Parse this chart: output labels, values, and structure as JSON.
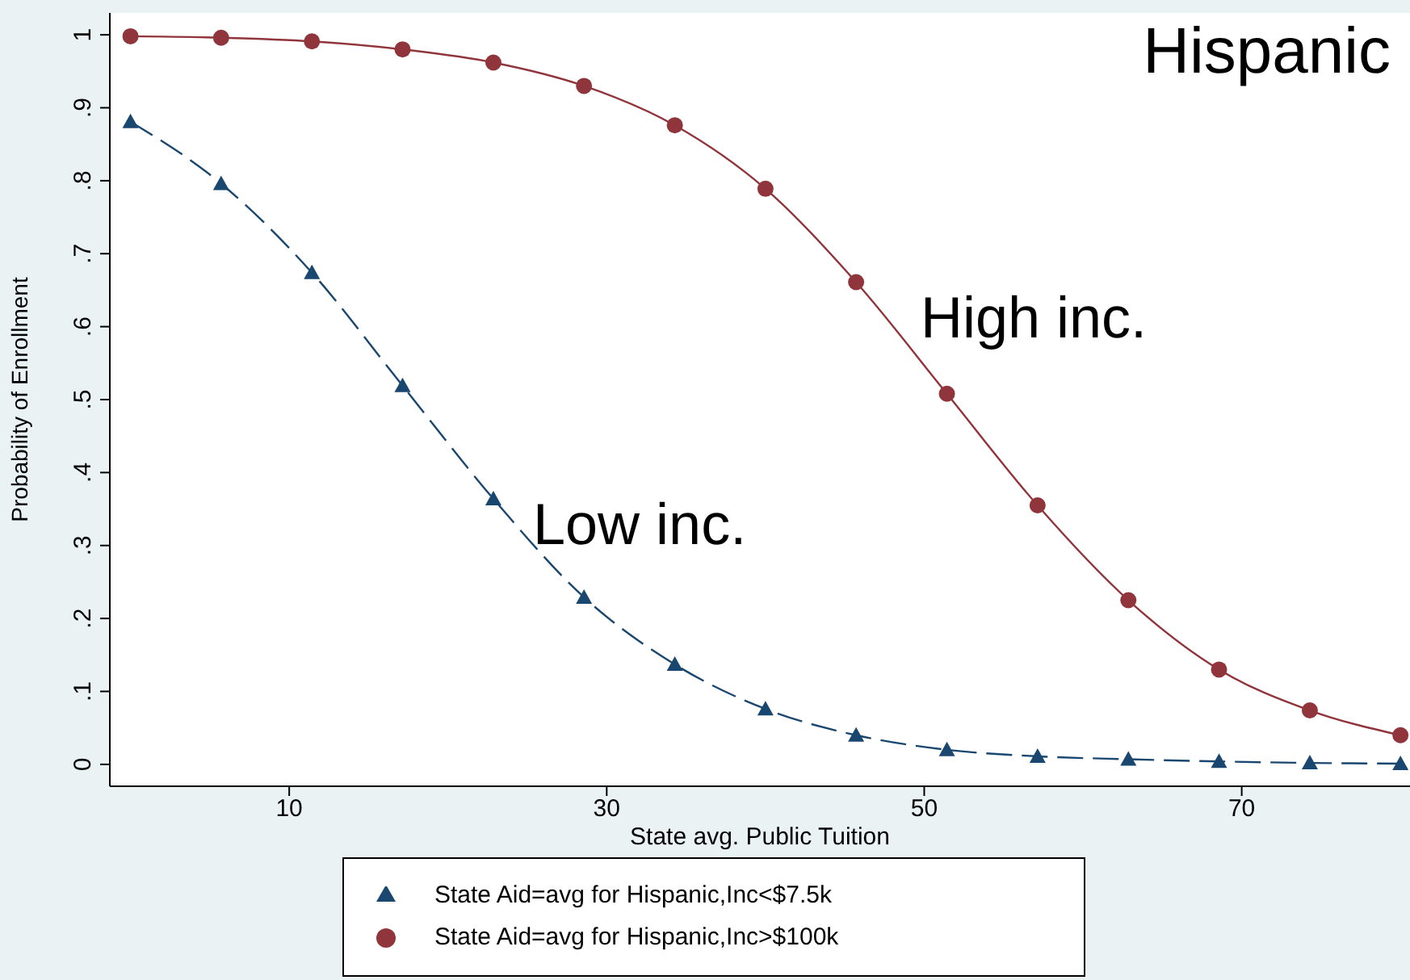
{
  "chart_data": {
    "type": "line",
    "xlabel": "State avg. Public Tuition",
    "ylabel": "Probability of Enrollment",
    "annotations": [
      "Hispanic",
      "High inc.",
      "Low inc."
    ],
    "x": [
      0,
      5.71,
      11.43,
      17.14,
      22.86,
      28.57,
      34.29,
      40,
      45.71,
      51.43,
      57.14,
      62.86,
      68.57,
      74.29,
      80
    ],
    "series": [
      {
        "name": "State Aid=avg for Hispanic,Inc<$7.5k",
        "color": "#1a476f",
        "marker": "triangle",
        "line_style": "dashed",
        "values": [
          0.881,
          0.796,
          0.674,
          0.519,
          0.364,
          0.229,
          0.137,
          0.076,
          0.04,
          0.02,
          0.011,
          0.007,
          0.004,
          0.002,
          0.001
        ]
      },
      {
        "name": "State Aid=avg for Hispanic,Inc>$100k",
        "color": "#90353b",
        "marker": "circle",
        "line_style": "solid",
        "values": [
          0.998,
          0.996,
          0.991,
          0.98,
          0.962,
          0.93,
          0.876,
          0.789,
          0.661,
          0.508,
          0.355,
          0.225,
          0.13,
          0.074,
          0.04
        ]
      }
    ],
    "xlim": [
      -1.3,
      80.6
    ],
    "xticks": [
      10,
      30,
      50,
      70
    ],
    "ylim": [
      -0.03,
      1.03
    ],
    "yticks": [
      0,
      {
        "value": 0.1,
        "label": ".1"
      },
      {
        "value": 0.2,
        "label": ".2"
      },
      {
        "value": 0.3,
        "label": ".3"
      },
      {
        "value": 0.4,
        "label": ".4"
      },
      {
        "value": 0.5,
        "label": ".5"
      },
      {
        "value": 0.6,
        "label": ".6"
      },
      {
        "value": 0.7,
        "label": ".7"
      },
      {
        "value": 0.8,
        "label": ".8"
      },
      {
        "value": 0.9,
        "label": ".9"
      },
      1
    ],
    "legend": "bottom"
  }
}
